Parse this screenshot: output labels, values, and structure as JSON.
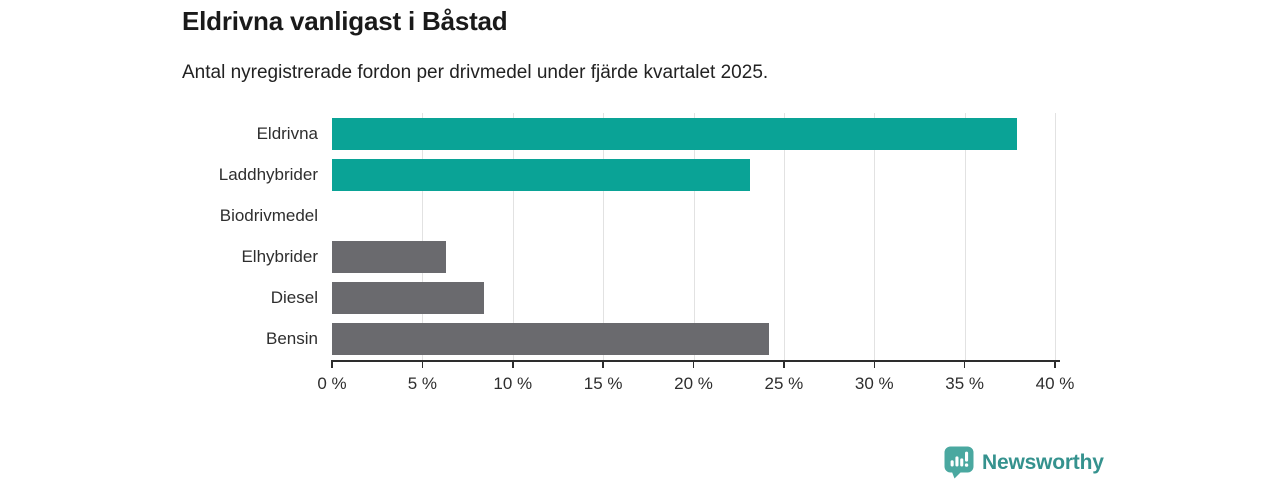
{
  "title": "Eldrivna vanligast i Båstad",
  "subtitle": "Antal nyregistrerade fordon per drivmedel under fjärde kvartalet 2025.",
  "chart_data": {
    "type": "bar",
    "orientation": "horizontal",
    "title": "Eldrivna vanligast i Båstad",
    "subtitle": "Antal nyregistrerade fordon per drivmedel under fjärde kvartalet 2025.",
    "categories": [
      "Eldrivna",
      "Laddhybrider",
      "Biodrivmedel",
      "Elhybrider",
      "Diesel",
      "Bensin"
    ],
    "values": [
      37.9,
      23.1,
      0,
      6.3,
      8.4,
      24.2
    ],
    "unit": "%",
    "bar_colors": [
      "#0aa396",
      "#0aa396",
      "#6a6a6e",
      "#6a6a6e",
      "#6a6a6e",
      "#6a6a6e"
    ],
    "xlim": [
      0,
      40
    ],
    "x_ticks": [
      0,
      5,
      10,
      15,
      20,
      25,
      30,
      35,
      40
    ],
    "x_tick_labels": [
      "0 %",
      "5 %",
      "10 %",
      "15 %",
      "20 %",
      "25 %",
      "30 %",
      "35 %",
      "40 %"
    ],
    "grid": "vertical-only",
    "legend": "none"
  },
  "branding": {
    "logo_text": "Newsworthy",
    "logo_icon": "bar-chart-speech-bubble-icon",
    "wordmark_color": "#35928e",
    "icon_color": "#4aa8a0"
  },
  "colors": {
    "teal": "#0aa396",
    "gray": "#6a6a6e",
    "gridline": "#e2e2e2",
    "axis": "#2d2d2d",
    "title_text": "#1a1a1a",
    "label_text": "#2e2e2e",
    "background": "#ffffff"
  }
}
